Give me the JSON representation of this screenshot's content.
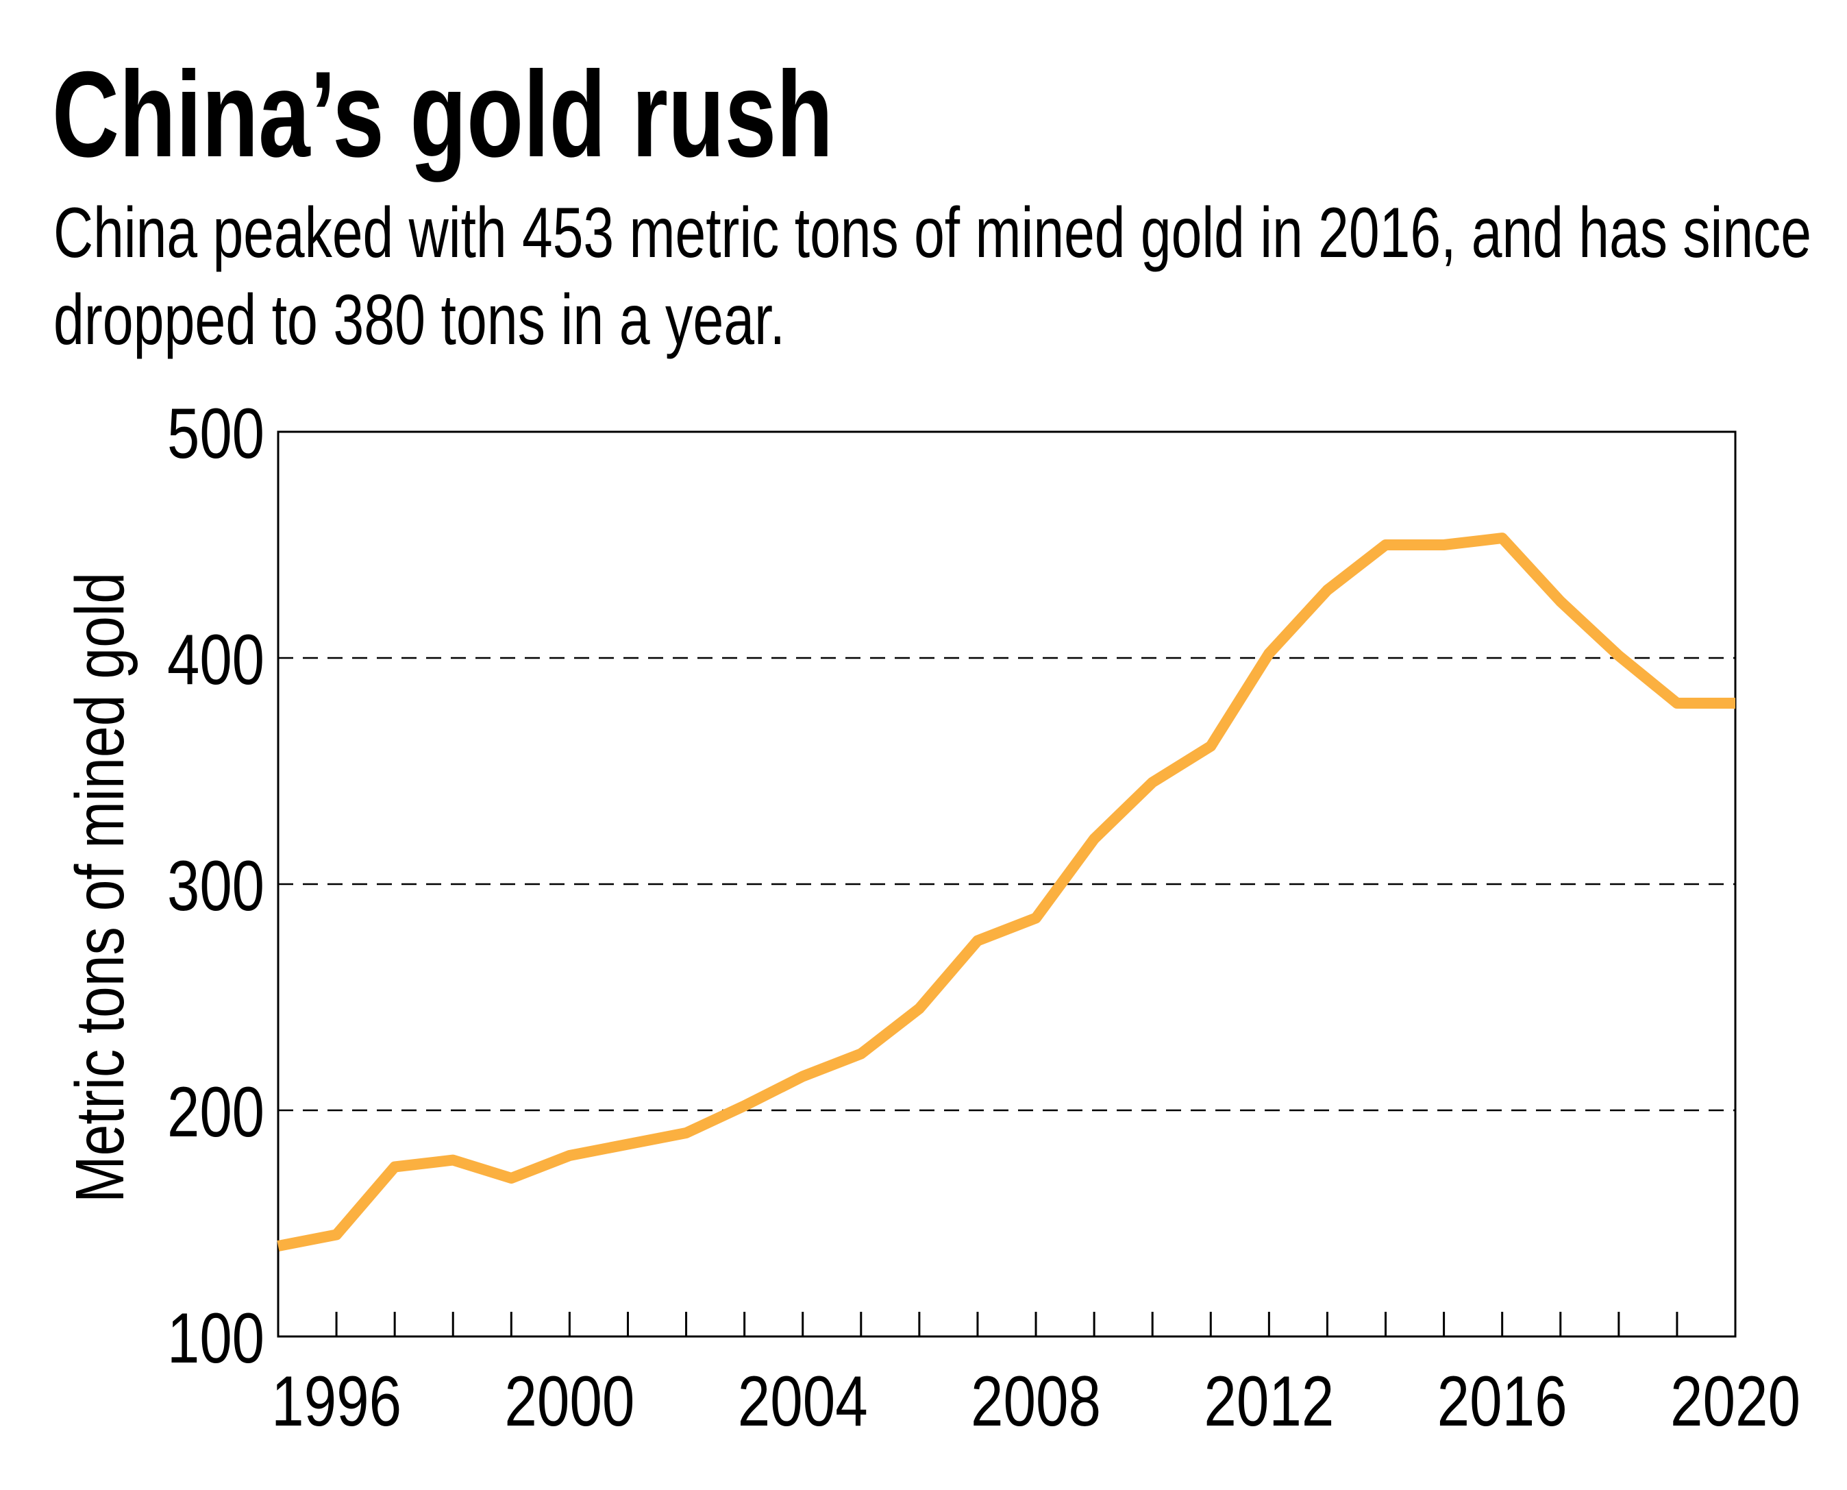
{
  "chart_data": {
    "type": "line",
    "title": "China’s gold rush",
    "subtitle_lines": [
      "China peaked with 453 metric tons of mined gold in 2016, and has since",
      "dropped to 380 tons in a year."
    ],
    "xlabel": "",
    "ylabel": "Metric tons of mined gold",
    "xlim": [
      1995,
      2020
    ],
    "ylim": [
      100,
      500
    ],
    "x_ticks": [
      1996,
      2000,
      2004,
      2008,
      2012,
      2016,
      2020
    ],
    "x_tick_labels": [
      "1996",
      "2000",
      "2004",
      "2008",
      "2012",
      "2016",
      "2020"
    ],
    "y_ticks": [
      100,
      200,
      300,
      400,
      500
    ],
    "y_tick_labels": [
      "100",
      "200",
      "300",
      "400",
      "500"
    ],
    "grid": "horizontal dashed",
    "line_color": "#FBB040",
    "x": [
      1995,
      1996,
      1997,
      1998,
      1999,
      2000,
      2001,
      2002,
      2003,
      2004,
      2005,
      2006,
      2007,
      2008,
      2009,
      2010,
      2011,
      2012,
      2013,
      2014,
      2015,
      2016,
      2017,
      2018,
      2019,
      2020
    ],
    "values": [
      140,
      145,
      175,
      178,
      170,
      180,
      185,
      190,
      202,
      215,
      225,
      245,
      275,
      285,
      320,
      345,
      361,
      402,
      430,
      450,
      450,
      453,
      425,
      401,
      380,
      380
    ]
  }
}
